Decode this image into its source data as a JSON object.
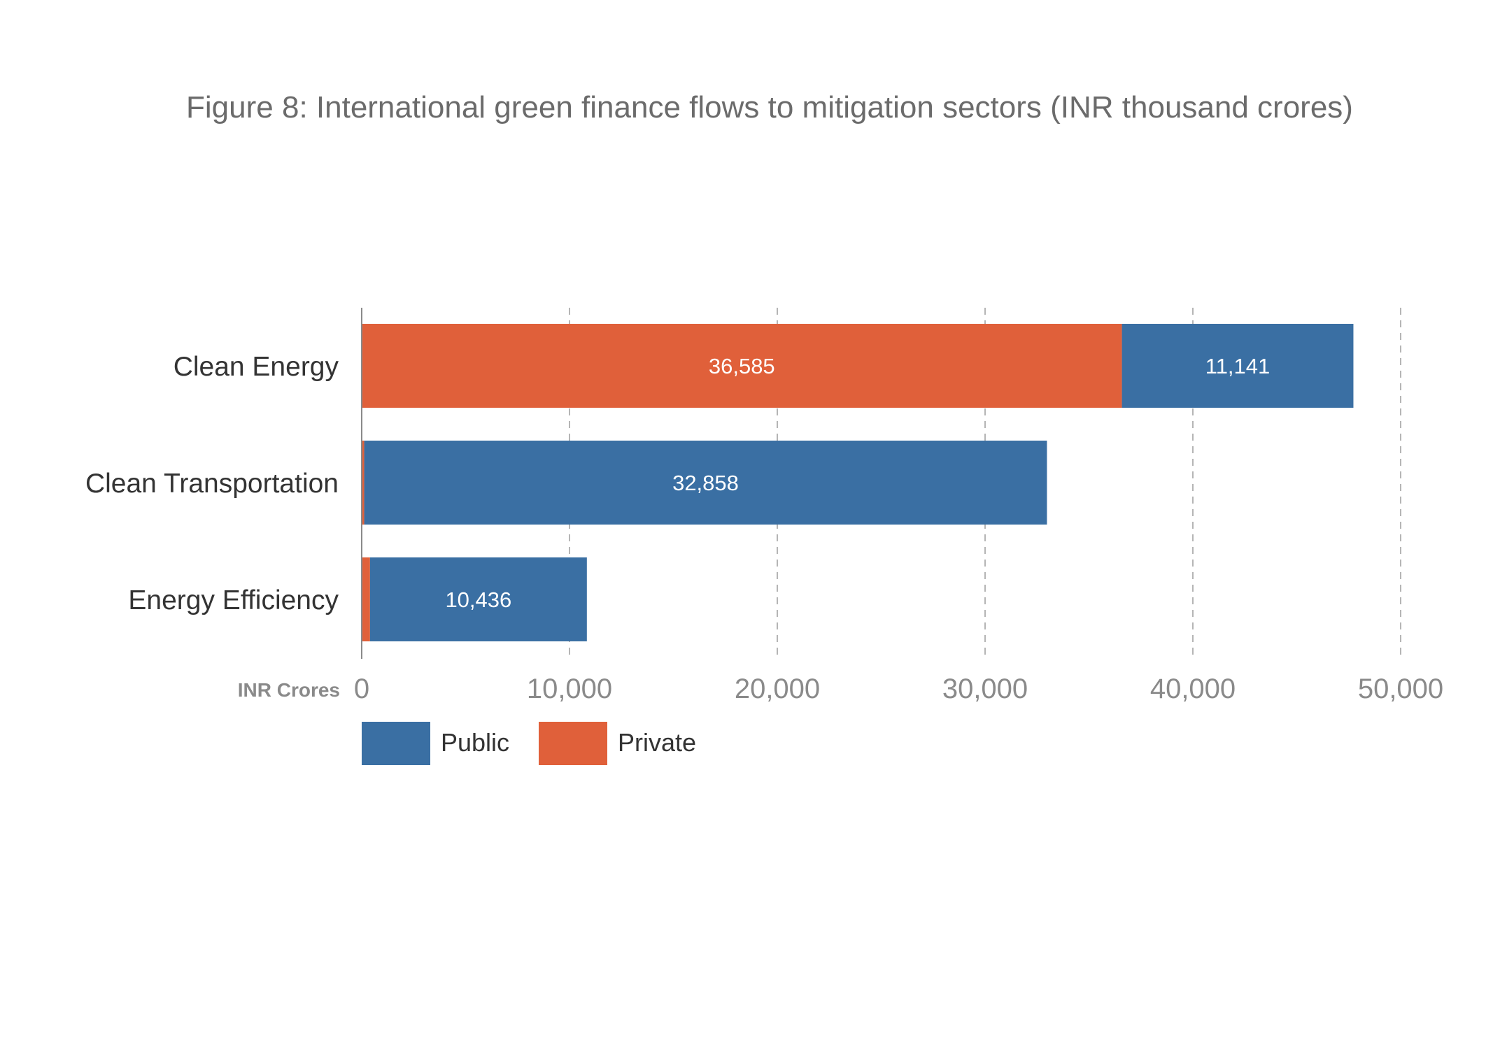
{
  "chart_data": {
    "type": "bar",
    "orientation": "horizontal",
    "stacked": true,
    "title": "Figure 8: International green finance flows to mitigation sectors (INR thousand crores)",
    "xlabel": "INR Crores",
    "ylabel": "",
    "categories": [
      "Clean Energy",
      "Clean Transportation",
      "Energy Efficiency"
    ],
    "series": [
      {
        "name": "Private",
        "color": "#E0603A",
        "values": [
          36585,
          120,
          400
        ],
        "labels": [
          "36,585",
          "",
          ""
        ]
      },
      {
        "name": "Public",
        "color": "#3A6FA3",
        "values": [
          11141,
          32858,
          10436
        ],
        "labels": [
          "11,141",
          "32,858",
          "10,436"
        ]
      }
    ],
    "xlim": [
      0,
      50000
    ],
    "xticks": [
      0,
      10000,
      20000,
      30000,
      40000,
      50000
    ],
    "xtick_labels": [
      "0",
      "10,000",
      "20,000",
      "30,000",
      "40,000",
      "50,000"
    ],
    "grid": "vertical dashed",
    "legend": {
      "position": "bottom-left",
      "items": [
        {
          "name": "Public",
          "color": "#3A6FA3"
        },
        {
          "name": "Private",
          "color": "#E0603A"
        }
      ]
    }
  }
}
